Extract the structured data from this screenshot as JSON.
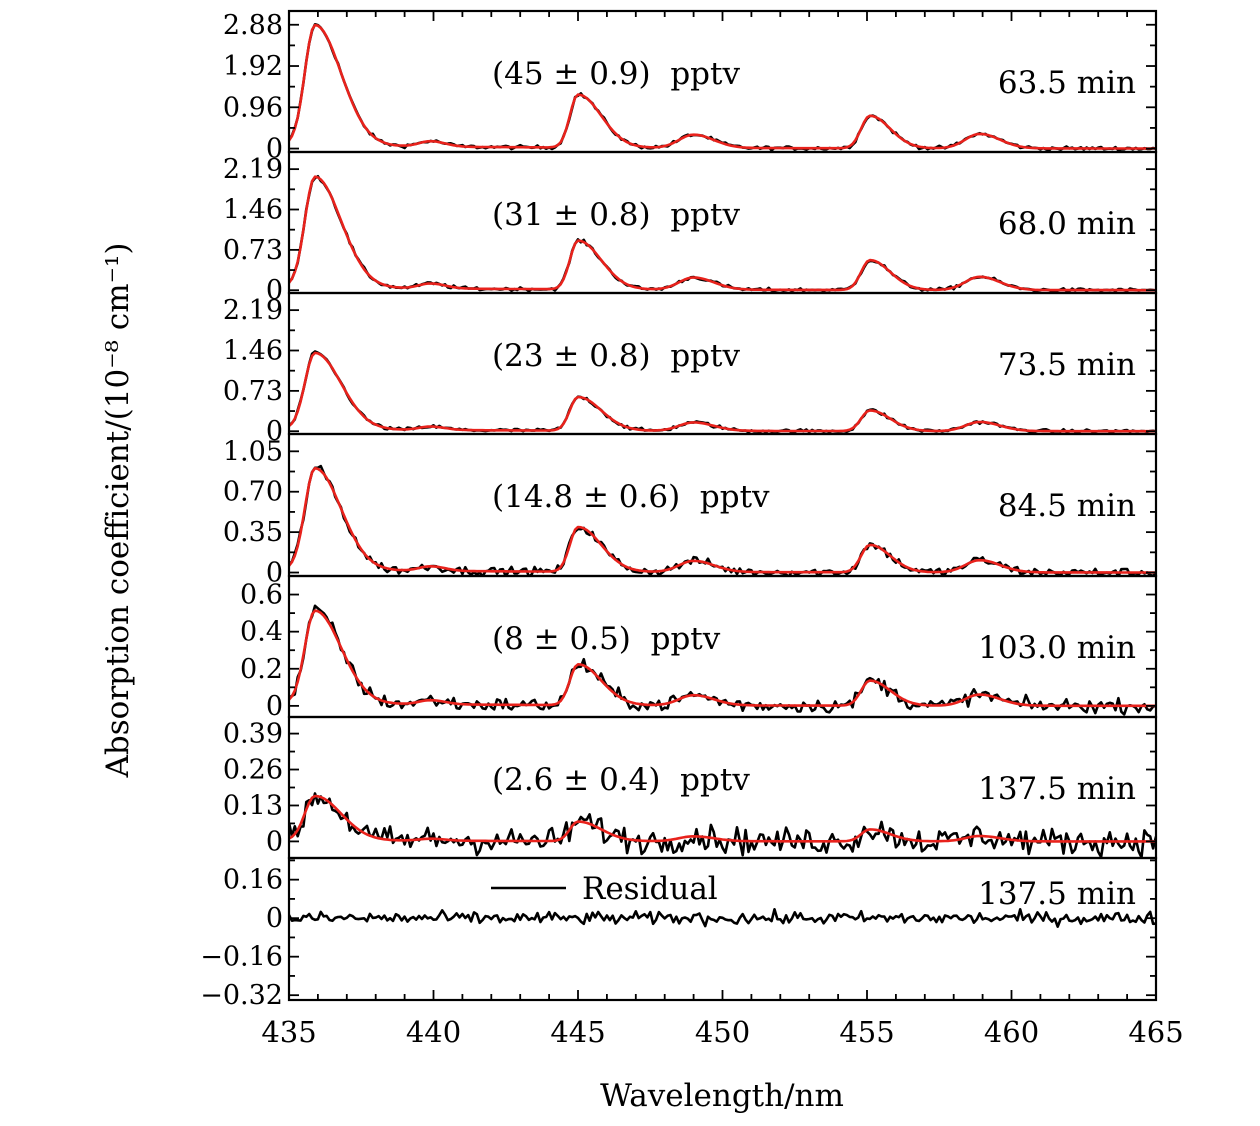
{
  "chart_data": {
    "type": "line",
    "x_axis": {
      "label": "Wavelength/nm",
      "range": [
        435,
        465
      ],
      "ticks": [
        "435",
        "440",
        "445",
        "450",
        "455",
        "460",
        "465"
      ]
    },
    "y_axis": {
      "label": "Absorption coefficient/(10⁻⁸ cm⁻¹)"
    },
    "colors": {
      "measured": "#000000",
      "fit": "#e8221c"
    },
    "panels": [
      {
        "concentration": "(45 ± 0.9)  pptv",
        "time": "63.5 min",
        "ylim": [
          -0.08,
          3.2
        ],
        "yticks": [
          {
            "value": 0,
            "label": "0"
          },
          {
            "value": 0.96,
            "label": "0.96"
          },
          {
            "value": 1.92,
            "label": "1.92"
          },
          {
            "value": 2.88,
            "label": "2.88"
          }
        ],
        "amplitude": 2.8,
        "noise": 0.04
      },
      {
        "concentration": "(31 ± 0.8)  pptv",
        "time": "68.0 min",
        "ylim": [
          -0.05,
          2.5
        ],
        "yticks": [
          {
            "value": 0,
            "label": "0"
          },
          {
            "value": 0.73,
            "label": "0.73"
          },
          {
            "value": 1.46,
            "label": "1.46"
          },
          {
            "value": 2.19,
            "label": "2.19"
          }
        ],
        "amplitude": 2.0,
        "noise": 0.03
      },
      {
        "concentration": "(23 ± 0.8)  pptv",
        "time": "73.5 min",
        "ylim": [
          -0.05,
          2.5
        ],
        "yticks": [
          {
            "value": 0,
            "label": "0"
          },
          {
            "value": 0.73,
            "label": "0.73"
          },
          {
            "value": 1.46,
            "label": "1.46"
          },
          {
            "value": 2.19,
            "label": "2.19"
          }
        ],
        "amplitude": 1.38,
        "noise": 0.03
      },
      {
        "concentration": "(14.8 ± 0.6)  pptv",
        "time": "84.5 min",
        "ylim": [
          -0.03,
          1.2
        ],
        "yticks": [
          {
            "value": 0,
            "label": "0"
          },
          {
            "value": 0.35,
            "label": "0.35"
          },
          {
            "value": 0.7,
            "label": "0.70"
          },
          {
            "value": 1.05,
            "label": "1.05"
          }
        ],
        "amplitude": 0.88,
        "noise": 0.035
      },
      {
        "concentration": "(8 ± 0.5)  pptv",
        "time": "103.0 min",
        "ylim": [
          -0.06,
          0.7
        ],
        "yticks": [
          {
            "value": 0,
            "label": "0"
          },
          {
            "value": 0.2,
            "label": "0.2"
          },
          {
            "value": 0.4,
            "label": "0.4"
          },
          {
            "value": 0.6,
            "label": "0.6"
          }
        ],
        "amplitude": 0.5,
        "noise": 0.035
      },
      {
        "concentration": "(2.6 ± 0.4)  pptv",
        "time": "137.5 min",
        "ylim": [
          -0.06,
          0.45
        ],
        "yticks": [
          {
            "value": 0,
            "label": "0"
          },
          {
            "value": 0.13,
            "label": "0.13"
          },
          {
            "value": 0.26,
            "label": "0.26"
          },
          {
            "value": 0.39,
            "label": "0.39"
          }
        ],
        "amplitude": 0.16,
        "noise": 0.045
      },
      {
        "legend": "Residual",
        "time": "137.5 min",
        "ylim": [
          -0.34,
          0.25
        ],
        "yticks": [
          {
            "value": 0.16,
            "label": "0.16"
          },
          {
            "value": 0,
            "label": "0"
          },
          {
            "value": -0.16,
            "label": "−0.16"
          },
          {
            "value": -0.32,
            "label": "−0.32"
          }
        ],
        "amplitude": 0,
        "noise": 0.025
      }
    ]
  }
}
